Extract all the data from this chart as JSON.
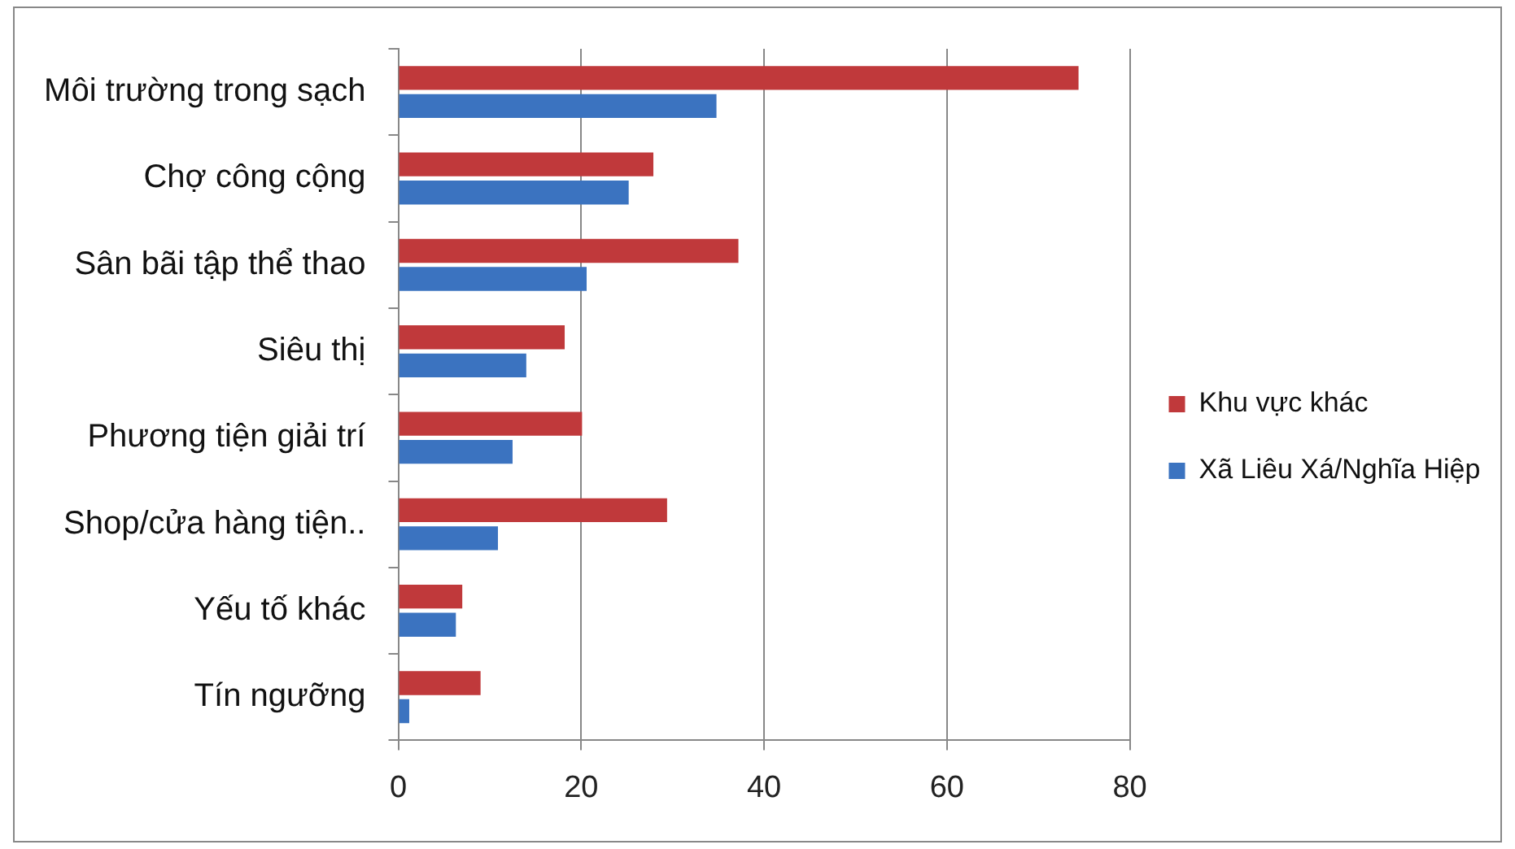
{
  "chart_data": {
    "type": "bar",
    "orientation": "horizontal",
    "categories": [
      "Môi trường trong sạch",
      "Chợ công cộng",
      "Sân bãi tập thể thao",
      "Siêu thị",
      "Phương tiện giải trí",
      "Shop/cửa hàng tiện..",
      "Yếu tố khác",
      "Tín ngưỡng"
    ],
    "series": [
      {
        "name": "Khu vực khác",
        "color": "#c0393b",
        "values": [
          74.4,
          27.9,
          37.2,
          18.2,
          20.1,
          29.4,
          7,
          9
        ]
      },
      {
        "name": "Xã Liêu Xá/Nghĩa Hiệp",
        "color": "#3b73c0",
        "values": [
          34.8,
          25.2,
          20.6,
          14,
          12.5,
          10.9,
          6.3,
          1.2
        ]
      }
    ],
    "xlim": [
      0,
      80
    ],
    "xticks": [
      0,
      20,
      40,
      60,
      80
    ],
    "grid": "x",
    "legend": "right"
  }
}
